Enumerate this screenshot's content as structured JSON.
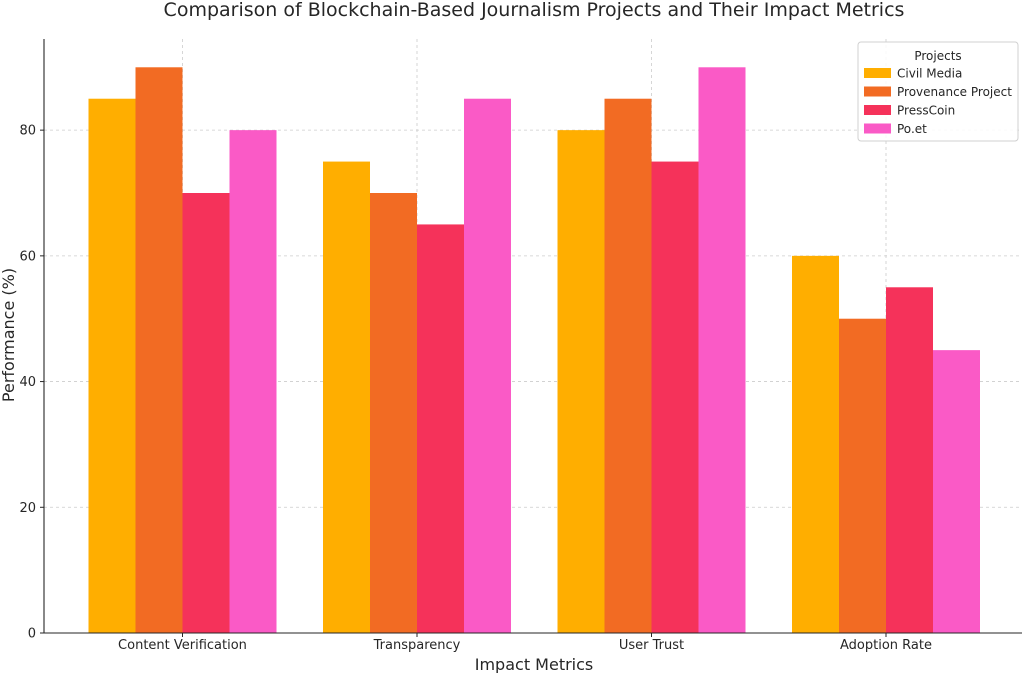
{
  "chart_data": {
    "type": "bar",
    "title": "Comparison of Blockchain-Based Journalism Projects and Their Impact Metrics",
    "xlabel": "Impact Metrics",
    "ylabel": "Performance (%)",
    "categories": [
      "Content Verification",
      "Transparency",
      "User Trust",
      "Adoption Rate"
    ],
    "series": [
      {
        "name": "Civil Media",
        "color": "#FFAE00",
        "values": [
          85,
          75,
          80,
          60
        ]
      },
      {
        "name": "Provenance Project",
        "color": "#F26B23",
        "values": [
          90,
          70,
          85,
          50
        ]
      },
      {
        "name": "PressCoin",
        "color": "#F5325A",
        "values": [
          70,
          65,
          75,
          55
        ]
      },
      {
        "name": "Po.et",
        "color": "#FA5AC6",
        "values": [
          80,
          85,
          90,
          45
        ]
      }
    ],
    "ylim": [
      0,
      94.5
    ],
    "yticks": [
      0,
      20,
      40,
      60,
      80
    ],
    "grid": true,
    "legend": {
      "title": "Projects",
      "placement": "top-right"
    }
  }
}
